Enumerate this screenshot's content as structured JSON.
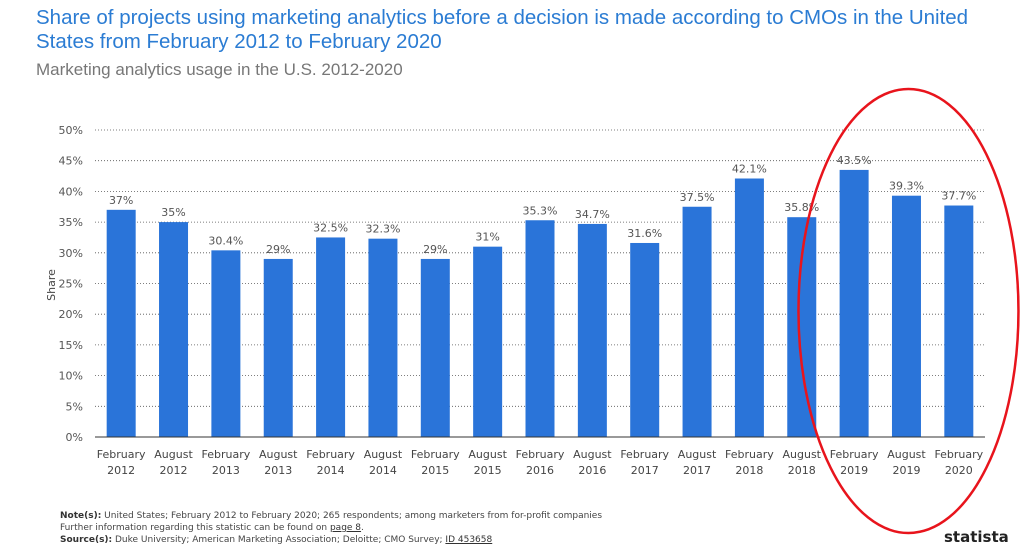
{
  "chart_data": {
    "type": "bar",
    "title": "Share of projects using marketing analytics before a decision is made according to CMOs in the United States from February 2012 to February 2020",
    "subtitle": "Marketing analytics usage in the U.S. 2012-2020",
    "ylabel": "Share",
    "xlabel": "",
    "ylim": [
      0,
      50
    ],
    "yticks": [
      "0%",
      "5%",
      "10%",
      "15%",
      "20%",
      "25%",
      "30%",
      "35%",
      "40%",
      "45%",
      "50%"
    ],
    "grid": true,
    "categories": [
      [
        "February",
        "2012"
      ],
      [
        "August",
        "2012"
      ],
      [
        "February",
        "2013"
      ],
      [
        "August",
        "2013"
      ],
      [
        "February",
        "2014"
      ],
      [
        "August",
        "2014"
      ],
      [
        "February",
        "2015"
      ],
      [
        "August",
        "2015"
      ],
      [
        "February",
        "2016"
      ],
      [
        "August",
        "2016"
      ],
      [
        "February",
        "2017"
      ],
      [
        "August",
        "2017"
      ],
      [
        "February",
        "2018"
      ],
      [
        "August",
        "2018"
      ],
      [
        "February",
        "2019"
      ],
      [
        "August",
        "2019"
      ],
      [
        "February",
        "2020"
      ]
    ],
    "values": [
      37,
      35,
      30.4,
      29,
      32.5,
      32.3,
      29,
      31,
      35.3,
      34.7,
      31.6,
      37.5,
      42.1,
      35.8,
      43.5,
      39.3,
      37.7
    ],
    "labels": [
      "37%",
      "35%",
      "30.4%",
      "29%",
      "32.5%",
      "32.3%",
      "29%",
      "31%",
      "35.3%",
      "34.7%",
      "31.6%",
      "37.5%",
      "42.1%",
      "35.8%",
      "43.5%",
      "39.3%",
      "37.7%"
    ],
    "colors": {
      "bar": "#2a74d9",
      "highlight": "#e8141c"
    },
    "annotation": "red ellipse around February 2019 - February 2020"
  },
  "notes": {
    "note_label": "Note(s):",
    "note": " United States; February 2012 to February 2020; 265 respondents; among marketers from for-profit companies",
    "further": "Further information regarding this statistic can be found on ",
    "page_link": "page 8",
    "source_label": "Source(s):",
    "source": " Duke University; American Marketing Association; Deloitte; CMO Survey; ",
    "id_link": "ID 453658"
  },
  "logo": "statista"
}
